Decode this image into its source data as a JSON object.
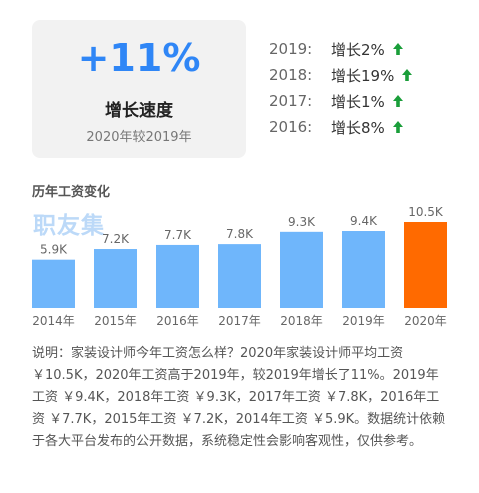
{
  "summary": {
    "value": "+11%",
    "label": "增长速度",
    "sub": "2020年较2019年"
  },
  "growth": [
    {
      "year": "2019:",
      "text": "增长2%"
    },
    {
      "year": "2018:",
      "text": "增长19%"
    },
    {
      "year": "2017:",
      "text": "增长1%"
    },
    {
      "year": "2016:",
      "text": "增长8%"
    }
  ],
  "colors": {
    "bar": "#6fb6fb",
    "highlight": "#ff6a00",
    "up_arrow": "#1a9e3a",
    "accent": "#2f86f6"
  },
  "chart_title": "历年工资变化",
  "watermark": "职友集",
  "chart_data": {
    "type": "bar",
    "categories": [
      "2014年",
      "2015年",
      "2016年",
      "2017年",
      "2018年",
      "2019年",
      "2020年"
    ],
    "values": [
      5.9,
      7.2,
      7.7,
      7.8,
      9.3,
      9.4,
      10.5
    ],
    "labels": [
      "5.9K",
      "7.2K",
      "7.7K",
      "7.8K",
      "9.3K",
      "9.4K",
      "10.5K"
    ],
    "highlight_index": 6,
    "ylim": [
      0,
      10.5
    ],
    "grid": false
  },
  "description": "说明：家装设计师今年工资怎么样？2020年家装设计师平均工资 ￥10.5K，2020年工资高于2019年，较2019年增长了11%。2019年工资 ￥9.4K，2018年工资 ￥9.3K，2017年工资 ￥7.8K，2016年工资 ￥7.7K，2015年工资 ￥7.2K，2014年工资 ￥5.9K。数据统计依赖于各大平台发布的公开数据，系统稳定性会影响客观性，仅供参考。"
}
